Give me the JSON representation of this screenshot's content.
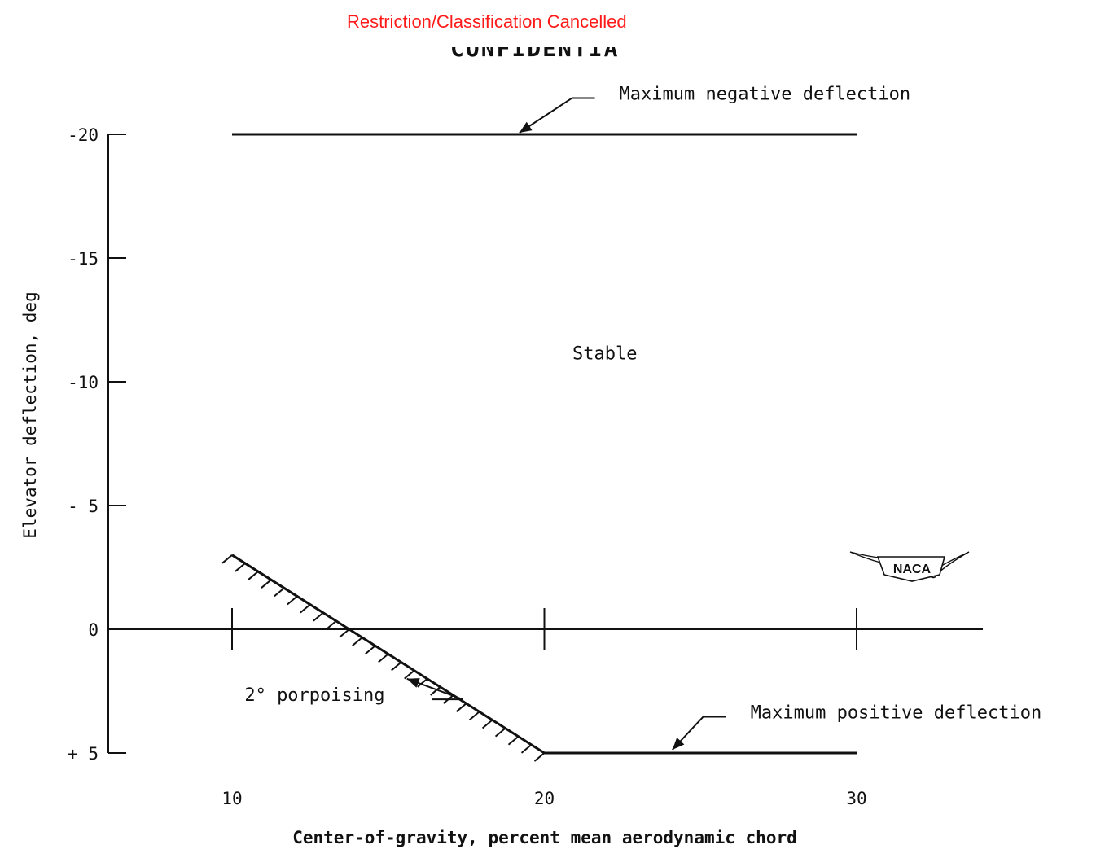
{
  "header": {
    "notice": "Restriction/Classification Cancelled",
    "classification": "CONFIDENTIAL"
  },
  "logo": {
    "text": "NACA"
  },
  "chart_data": {
    "type": "line",
    "xlabel": "Center-of-gravity, percent mean aerodynamic chord",
    "ylabel": "Elevator deflection, deg",
    "xlim": [
      6,
      34
    ],
    "ylim": [
      5,
      -20
    ],
    "x_ticks": [
      {
        "value": 10,
        "label": "10"
      },
      {
        "value": 20,
        "label": "20"
      },
      {
        "value": 30,
        "label": "30"
      }
    ],
    "y_ticks": [
      {
        "value": -20,
        "label": "-20"
      },
      {
        "value": -15,
        "label": "-15"
      },
      {
        "value": -10,
        "label": "-10"
      },
      {
        "value": -5,
        "label": "- 5"
      },
      {
        "value": 0,
        "label": "0"
      },
      {
        "value": 5,
        "label": "+ 5"
      }
    ],
    "grid": false,
    "lines": {
      "max_negative": {
        "x": [
          10,
          30
        ],
        "y": [
          -20,
          -20
        ]
      },
      "max_positive": {
        "x": [
          20,
          30
        ],
        "y": [
          5,
          5
        ]
      },
      "porpoising_boundary": {
        "x": [
          10,
          20
        ],
        "y": [
          -3,
          5
        ]
      }
    },
    "annotations": [
      {
        "text": "Maximum negative deflection",
        "x": 22.4,
        "y": -21.4,
        "arrow_to": [
          19.2,
          -20
        ]
      },
      {
        "text": "Stable",
        "x": 20.9,
        "y": -10.9
      },
      {
        "text": "2° porpoising",
        "x": 10.4,
        "y": 2.9,
        "arrow_to": [
          15.6,
          2
        ]
      },
      {
        "text": "Maximum positive deflection",
        "x": 26.6,
        "y": 3.6,
        "arrow_to": [
          24.1,
          5
        ]
      }
    ]
  }
}
